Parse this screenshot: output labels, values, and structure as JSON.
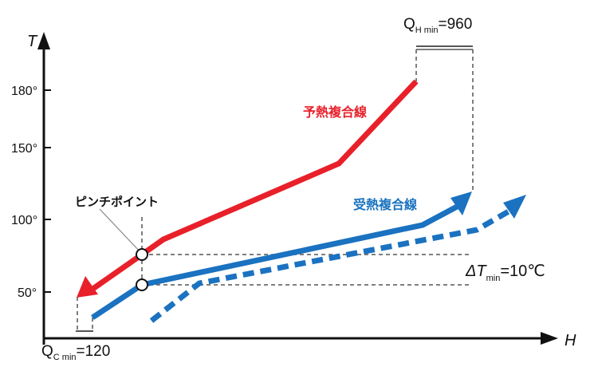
{
  "axes": {
    "y_label": "T",
    "x_label": "H",
    "y_ticks": [
      "180°",
      "150°",
      "100°",
      "50°"
    ]
  },
  "labels": {
    "hot_composite": "予熱複合線",
    "cold_composite": "受熱複合線",
    "pinch_point": "ピンチポイント"
  },
  "annotations": {
    "q_h_min": {
      "symbol": "Q",
      "sub": "H min",
      "value": "=960"
    },
    "q_c_min": {
      "symbol": "Q",
      "sub": "C min",
      "value": "=120"
    },
    "delta_t_min": {
      "symbol": "ΔT",
      "sub": "min",
      "value": "=10℃"
    }
  },
  "colors": {
    "hot": "#e8202a",
    "cold": "#1a72c0",
    "axis": "#111111",
    "guide": "#555555"
  }
}
